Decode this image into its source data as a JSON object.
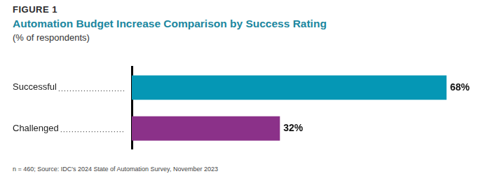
{
  "chart_data": {
    "type": "bar",
    "orientation": "horizontal",
    "figure_label": "FIGURE 1",
    "title": "Automation Budget Increase Comparison by Success Rating",
    "subtitle": "(% of respondents)",
    "categories": [
      "Successful",
      "Challenged"
    ],
    "values": [
      68,
      32
    ],
    "value_labels": [
      "68%",
      "32%"
    ],
    "colors": [
      "#0597b5",
      "#8b3189"
    ],
    "data_labels": true,
    "grid": false,
    "tick_labels": "y",
    "note": "n = 460; Source: IDC's 2024 State of Automation Survey, November 2023"
  }
}
